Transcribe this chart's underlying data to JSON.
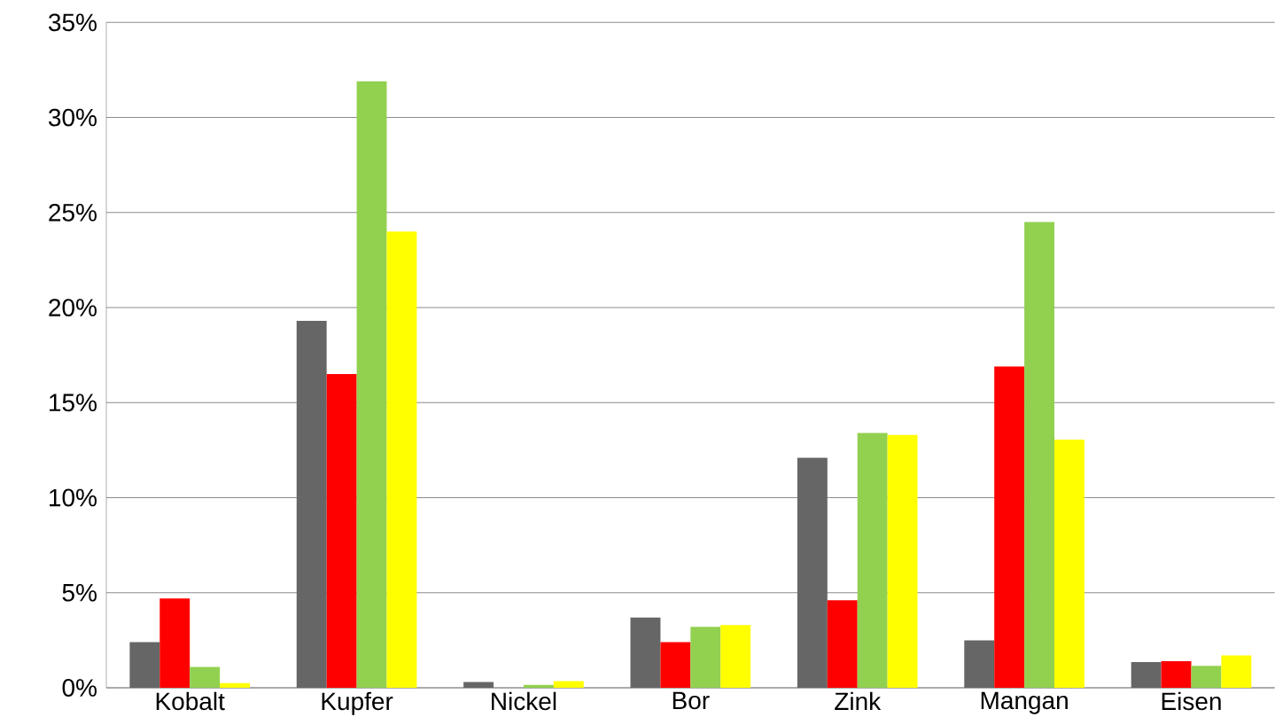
{
  "chart_data": {
    "type": "bar",
    "categories": [
      "Kobalt",
      "Kupfer",
      "Nickel",
      "Bor",
      "Zink",
      "Mangan",
      "Eisen"
    ],
    "series": [
      {
        "color": "#666666",
        "values": [
          2.4,
          19.3,
          0.3,
          3.7,
          12.1,
          2.5,
          1.35
        ]
      },
      {
        "color": "#ff0000",
        "values": [
          4.7,
          16.5,
          0,
          2.4,
          4.6,
          16.9,
          1.4
        ]
      },
      {
        "color": "#92d050",
        "values": [
          1.1,
          31.9,
          0.15,
          3.2,
          13.4,
          24.5,
          1.15
        ]
      },
      {
        "color": "#ffff00",
        "values": [
          0.25,
          24.0,
          0.35,
          3.3,
          13.3,
          13.05,
          1.7
        ]
      }
    ],
    "ylim": [
      0,
      35
    ],
    "yticks": [
      {
        "value": 0,
        "label": "0%"
      },
      {
        "value": 5,
        "label": "5%"
      },
      {
        "value": 10,
        "label": "10%"
      },
      {
        "value": 15,
        "label": "15%"
      },
      {
        "value": 20,
        "label": "20%"
      },
      {
        "value": 25,
        "label": "25%"
      },
      {
        "value": 30,
        "label": "30%"
      },
      {
        "value": 35,
        "label": "35%"
      }
    ],
    "grid": "y"
  }
}
